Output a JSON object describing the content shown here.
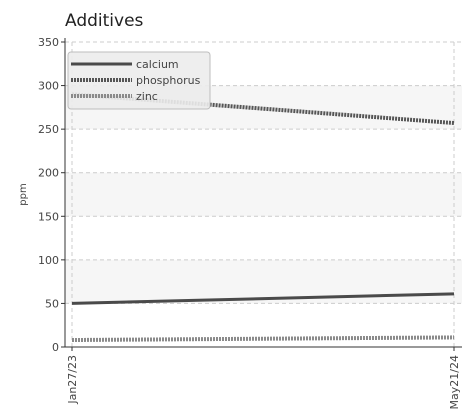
{
  "chart_data": {
    "type": "line",
    "title": "Additives",
    "ylabel": "ppm",
    "xlabel": "",
    "x": [
      "Jan27/23",
      "May21/24"
    ],
    "ylim": [
      0,
      350
    ],
    "yticks": [
      0,
      50,
      100,
      150,
      200,
      250,
      300,
      350
    ],
    "grid": true,
    "legend_position": "top-left",
    "series": [
      {
        "name": "calcium",
        "values": [
          50,
          61
        ],
        "color": "#4a4a4a",
        "style": "solid"
      },
      {
        "name": "phosphorus",
        "values": [
          290,
          257
        ],
        "color": "#555555",
        "style": "dotted"
      },
      {
        "name": "zinc",
        "values": [
          8,
          11
        ],
        "color": "#8a8a8a",
        "style": "dotted"
      }
    ]
  },
  "colors": {
    "band": "#f6f6f6",
    "grid": "#cccccc",
    "axis": "#333333",
    "legend_bg": "#ececec",
    "legend_border": "#bdbdbd"
  }
}
